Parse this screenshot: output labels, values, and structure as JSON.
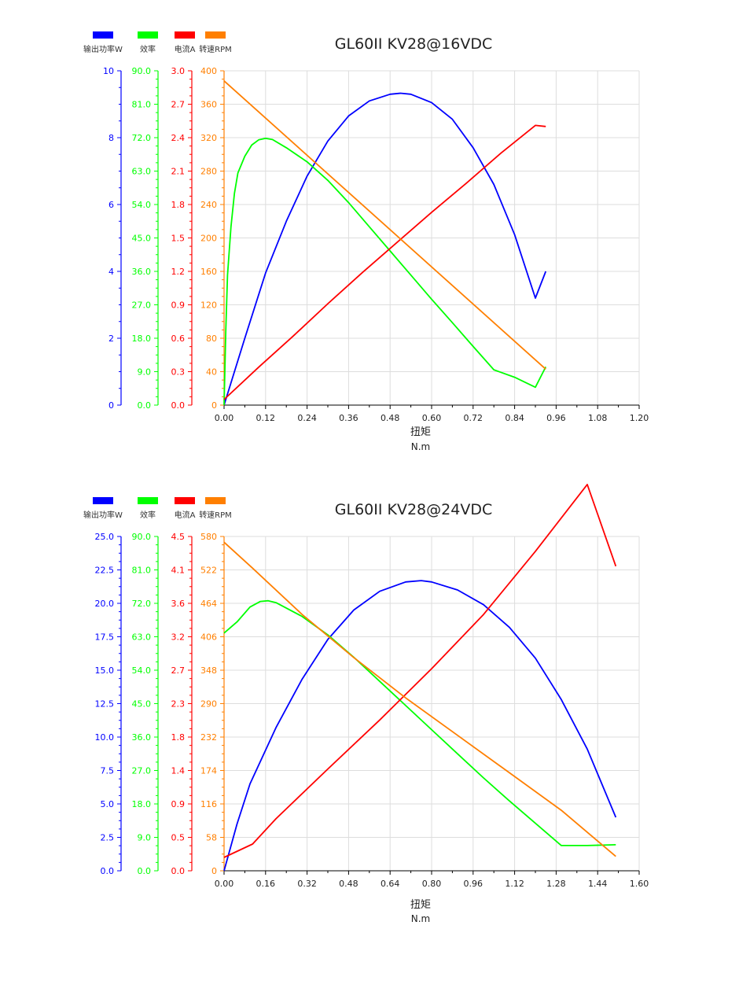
{
  "legend": [
    {
      "label": "输出功率W",
      "color": "#0000ff"
    },
    {
      "label": "效率",
      "color": "#00ff00"
    },
    {
      "label": "电流A",
      "color": "#ff0000"
    },
    {
      "label": "转速RPM",
      "color": "#ff7f00"
    }
  ],
  "colors": {
    "power": "#0000ff",
    "efficiency": "#00ff00",
    "current": "#ff0000",
    "speed": "#ff7f00",
    "grid": "#dddddd",
    "axis": "#000000"
  },
  "chart_data": [
    {
      "type": "line",
      "title": "GL60II KV28@16VDC",
      "xlabel": "扭矩",
      "xunit": "N.m",
      "xlim": [
        0,
        1.2
      ],
      "xticks": [
        "0.00",
        "0.12",
        "0.24",
        "0.36",
        "0.48",
        "0.60",
        "0.72",
        "0.84",
        "0.96",
        "1.08",
        "1.20"
      ],
      "y_axes": [
        {
          "key": "power",
          "range": [
            0,
            10
          ],
          "ticks": [
            "0",
            "2",
            "4",
            "6",
            "8",
            "10"
          ]
        },
        {
          "key": "efficiency",
          "range": [
            0,
            90
          ],
          "ticks": [
            "0.0",
            "9.0",
            "18.0",
            "27.0",
            "36.0",
            "45.0",
            "54.0",
            "63.0",
            "72.0",
            "81.0",
            "90.0"
          ]
        },
        {
          "key": "current",
          "range": [
            0,
            3.0
          ],
          "ticks": [
            "0.0",
            "0.3",
            "0.6",
            "0.9",
            "1.2",
            "1.5",
            "1.8",
            "2.1",
            "2.4",
            "2.7",
            "3.0"
          ]
        },
        {
          "key": "speed",
          "range": [
            0,
            400
          ],
          "ticks": [
            "0",
            "40",
            "80",
            "120",
            "160",
            "200",
            "240",
            "280",
            "320",
            "360",
            "400"
          ]
        }
      ],
      "series": [
        {
          "name": "输出功率W",
          "axis": "power",
          "x": [
            0,
            0.06,
            0.12,
            0.18,
            0.24,
            0.3,
            0.36,
            0.42,
            0.48,
            0.51,
            0.54,
            0.6,
            0.66,
            0.72,
            0.78,
            0.84,
            0.9,
            0.93
          ],
          "y": [
            0,
            2.0,
            3.95,
            5.5,
            6.85,
            7.9,
            8.65,
            9.1,
            9.3,
            9.33,
            9.3,
            9.05,
            8.55,
            7.7,
            6.6,
            5.1,
            3.2,
            4.0
          ]
        },
        {
          "name": "效率",
          "axis": "efficiency",
          "x": [
            0,
            0.005,
            0.01,
            0.02,
            0.03,
            0.04,
            0.06,
            0.08,
            0.1,
            0.12,
            0.14,
            0.18,
            0.24,
            0.3,
            0.36,
            0.42,
            0.48,
            0.54,
            0.6,
            0.66,
            0.72,
            0.78,
            0.84,
            0.9,
            0.93
          ],
          "y": [
            0,
            20,
            35,
            48,
            57,
            62.5,
            67,
            70,
            71.4,
            71.8,
            71.5,
            69.3,
            65.5,
            60.5,
            54.5,
            48,
            41.5,
            35,
            28.5,
            22.2,
            15.8,
            9.5,
            7.5,
            4.8,
            10.3
          ]
        },
        {
          "name": "电流A",
          "axis": "current",
          "x": [
            0,
            0.1,
            0.2,
            0.3,
            0.4,
            0.5,
            0.6,
            0.7,
            0.8,
            0.9,
            0.93
          ],
          "y": [
            0.05,
            0.34,
            0.62,
            0.91,
            1.19,
            1.46,
            1.73,
            1.99,
            2.26,
            2.51,
            2.5
          ]
        },
        {
          "name": "转速RPM",
          "axis": "speed",
          "x": [
            0,
            0.93
          ],
          "y": [
            388,
            43
          ]
        }
      ]
    },
    {
      "type": "line",
      "title": "GL60II KV28@24VDC",
      "xlabel": "扭矩",
      "xunit": "N.m",
      "xlim": [
        0,
        1.6
      ],
      "xticks": [
        "0.00",
        "0.16",
        "0.32",
        "0.48",
        "0.64",
        "0.80",
        "0.96",
        "1.12",
        "1.28",
        "1.44",
        "1.60"
      ],
      "y_axes": [
        {
          "key": "power",
          "range": [
            0,
            25
          ],
          "ticks": [
            "0.0",
            "2.5",
            "5.0",
            "7.5",
            "10.0",
            "12.5",
            "15.0",
            "17.5",
            "20.0",
            "22.5",
            "25.0"
          ]
        },
        {
          "key": "efficiency",
          "range": [
            0,
            90
          ],
          "ticks": [
            "0.0",
            "9.0",
            "18.0",
            "27.0",
            "36.0",
            "45.0",
            "54.0",
            "63.0",
            "72.0",
            "81.0",
            "90.0"
          ]
        },
        {
          "key": "current",
          "range": [
            0,
            4.5
          ],
          "ticks": [
            "0.0",
            "0.5",
            "0.9",
            "1.4",
            "1.8",
            "2.3",
            "2.7",
            "3.2",
            "3.6",
            "4.1",
            "4.5"
          ]
        },
        {
          "key": "speed",
          "range": [
            0,
            580
          ],
          "ticks": [
            "0",
            "58",
            "116",
            "174",
            "232",
            "290",
            "348",
            "406",
            "464",
            "522",
            "580"
          ]
        }
      ],
      "series": [
        {
          "name": "输出功率W",
          "axis": "power",
          "x": [
            0,
            0.05,
            0.1,
            0.2,
            0.3,
            0.4,
            0.5,
            0.6,
            0.7,
            0.76,
            0.8,
            0.9,
            1.0,
            1.1,
            1.2,
            1.3,
            1.4,
            1.51
          ],
          "y": [
            0,
            3.5,
            6.5,
            10.7,
            14.3,
            17.3,
            19.5,
            20.9,
            21.6,
            21.7,
            21.6,
            21.0,
            19.9,
            18.2,
            15.9,
            12.8,
            9.1,
            4.0
          ]
        },
        {
          "name": "效率",
          "axis": "efficiency",
          "x": [
            0,
            0.05,
            0.1,
            0.14,
            0.17,
            0.2,
            0.3,
            0.4,
            0.5,
            0.6,
            0.7,
            0.8,
            0.9,
            1.0,
            1.1,
            1.2,
            1.3,
            1.4,
            1.51
          ],
          "y": [
            64,
            67,
            71,
            72.5,
            72.7,
            72.2,
            68.5,
            63.5,
            57.5,
            51,
            44.5,
            38,
            31.5,
            25,
            18.8,
            12.8,
            6.8,
            6.8,
            7
          ]
        },
        {
          "name": "电流A",
          "axis": "current",
          "x": [
            0,
            0.11,
            0.2,
            0.4,
            0.6,
            0.8,
            1.0,
            1.2,
            1.4,
            1.51
          ],
          "y": [
            0.18,
            0.36,
            0.7,
            1.37,
            2.03,
            2.72,
            3.45,
            4.3,
            5.2,
            4.1
          ]
        },
        {
          "name": "转速RPM",
          "axis": "speed",
          "x": [
            0,
            0.11,
            0.3,
            0.5,
            0.7,
            0.9,
            1.1,
            1.3,
            1.51
          ],
          "y": [
            570,
            525,
            445,
            370,
            300,
            235,
            170,
            105,
            25
          ]
        }
      ]
    }
  ]
}
